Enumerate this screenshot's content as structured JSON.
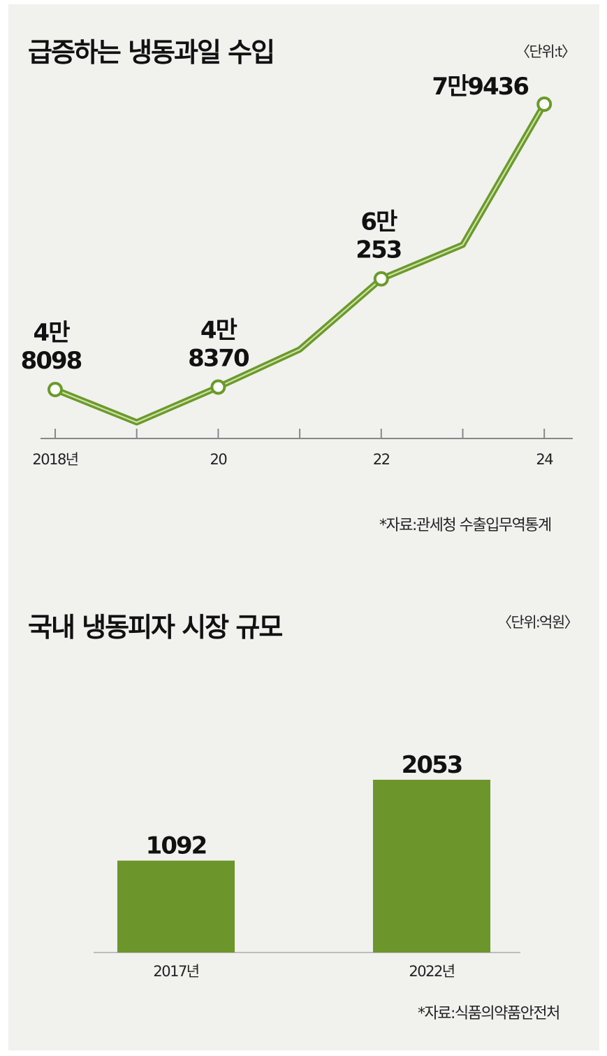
{
  "chart_data": [
    {
      "type": "line",
      "title": "급증하는 냉동과일 수입",
      "unit_note": "〈단위:t〉",
      "source": "*자료:관세청 수출입무역통계",
      "x": [
        2018,
        2019,
        2020,
        2021,
        2022,
        2023,
        2024
      ],
      "x_tick_labels": [
        "2018년",
        "",
        "20",
        "",
        "22",
        "",
        "24"
      ],
      "values": [
        48098,
        44500,
        48370,
        52500,
        60253,
        64000,
        79436
      ],
      "labeled_points": [
        {
          "index": 0,
          "line1": "4만",
          "line2": "8098"
        },
        {
          "index": 2,
          "line1": "4만",
          "line2": "8370"
        },
        {
          "index": 4,
          "line1": "6만",
          "line2": "253"
        },
        {
          "index": 6,
          "line1": "7만9436",
          "line2": ""
        }
      ],
      "line_color": "#6a9a2a"
    },
    {
      "type": "bar",
      "title": "국내 냉동피자 시장 규모",
      "unit_note": "〈단위:억원〉",
      "source": "*자료:식품의약품안전처",
      "categories": [
        "2017년",
        "2022년"
      ],
      "values": [
        1092,
        2053
      ],
      "value_labels": [
        "1092",
        "2053"
      ],
      "bar_color": "#6c962b"
    }
  ]
}
